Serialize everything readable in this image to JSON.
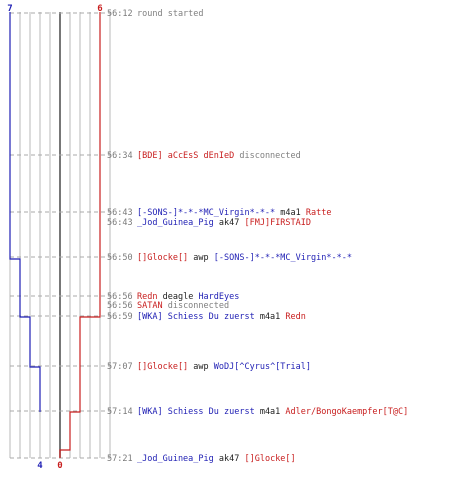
{
  "chart_data": {
    "type": "line",
    "title": "",
    "xlabel": "",
    "ylabel": "",
    "colors": {
      "team_blue": "#1f1fb4",
      "team_red": "#c81e1e",
      "grid": "#b8b8b8",
      "center": "#555555",
      "time": "#7a7a7a",
      "info": "#808080"
    },
    "start_counts": {
      "blue": "7",
      "red": "6"
    },
    "end_counts": {
      "blue": "4",
      "red": "0"
    },
    "series": [
      {
        "team": "blue",
        "points": [
          [
            7,
            0
          ],
          [
            7,
            1
          ],
          [
            7,
            2
          ],
          [
            7,
            3
          ],
          [
            7,
            4
          ],
          [
            6,
            4
          ],
          [
            6,
            5
          ],
          [
            6,
            6
          ],
          [
            5,
            6
          ],
          [
            5,
            7
          ],
          [
            4,
            7
          ],
          [
            4,
            8
          ]
        ]
      },
      {
        "team": "red",
        "points": [
          [
            6,
            0
          ],
          [
            6,
            1
          ],
          [
            6,
            2
          ],
          [
            6,
            3
          ],
          [
            6,
            4
          ],
          [
            6,
            5
          ],
          [
            6,
            6
          ],
          [
            4,
            6
          ],
          [
            4,
            7
          ],
          [
            4,
            8
          ],
          [
            2,
            8
          ],
          [
            2,
            9
          ],
          [
            0,
            9
          ],
          [
            0,
            10
          ]
        ]
      }
    ],
    "events": [
      {
        "time": "56:12",
        "parts": [
          {
            "text": "round started",
            "c": "info"
          }
        ]
      },
      {
        "time": "56:34",
        "parts": [
          {
            "text": "[BDE] aCcEsS dEnIeD",
            "c": "red"
          },
          {
            "text": " disconnected",
            "c": "info"
          }
        ]
      },
      {
        "time": "56:43",
        "parts": [
          {
            "text": "[-SONS-]*-*-*MC_Virgin*-*-*",
            "c": "blue"
          },
          {
            "text": "  m4a1 ",
            "c": "dark"
          },
          {
            "text": "Ratte",
            "c": "red"
          }
        ]
      },
      {
        "time": "56:43",
        "parts": [
          {
            "text": "_Jod_Guinea_Pig",
            "c": "blue"
          },
          {
            "text": " ak47 ",
            "c": "dark"
          },
          {
            "text": "[FMJ]FIRSTAID",
            "c": "red"
          }
        ]
      },
      {
        "time": "56:50",
        "parts": [
          {
            "text": "[]Glocke[]",
            "c": "red"
          },
          {
            "text": " awp ",
            "c": "dark"
          },
          {
            "text": "[-SONS-]*-*-*MC_Virgin*-*-*",
            "c": "blue"
          }
        ]
      },
      {
        "time": "56:56",
        "parts": [
          {
            "text": "Redn",
            "c": "red"
          },
          {
            "text": " deagle ",
            "c": "dark"
          },
          {
            "text": "HardEyes",
            "c": "blue"
          }
        ]
      },
      {
        "time": "56:56",
        "parts": [
          {
            "text": "SATAN",
            "c": "red"
          },
          {
            "text": " disconnected",
            "c": "info"
          }
        ]
      },
      {
        "time": "56:59",
        "parts": [
          {
            "text": "[WKA] Schiess Du zuerst",
            "c": "blue"
          },
          {
            "text": " m4a1 ",
            "c": "dark"
          },
          {
            "text": "Redn",
            "c": "red"
          }
        ]
      },
      {
        "time": "57:07",
        "parts": [
          {
            "text": "[]Glocke[]",
            "c": "red"
          },
          {
            "text": " awp ",
            "c": "dark"
          },
          {
            "text": "WoDJ[^Cyrus^[Trial]",
            "c": "blue"
          }
        ]
      },
      {
        "time": "57:14",
        "parts": [
          {
            "text": "[WKA] Schiess Du zuerst",
            "c": "blue"
          },
          {
            "text": " m4a1 ",
            "c": "dark"
          },
          {
            "text": "Adler/BongoKaempfer[T@C]",
            "c": "red"
          }
        ]
      },
      {
        "time": "57:21",
        "parts": [
          {
            "text": "_Jod_Guinea_Pig",
            "c": "blue"
          },
          {
            "text": " ak47 ",
            "c": "dark"
          },
          {
            "text": "[]Glocke[]",
            "c": "red"
          }
        ]
      }
    ]
  }
}
